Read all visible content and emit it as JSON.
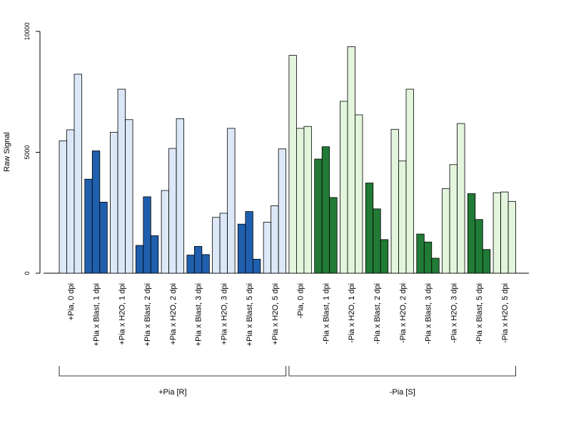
{
  "chart_data": {
    "type": "bar",
    "title": "",
    "xlabel": "",
    "ylabel": "Raw Signal",
    "ylim": [
      0,
      10000
    ],
    "yticks": [
      0,
      5000,
      10000
    ],
    "yticks_text": [
      "0",
      "5000",
      "10000"
    ],
    "grid": false,
    "legend": "none",
    "replicates_per_category": 3,
    "categories": [
      "+Pia, 0 dpi",
      "+Pia x Blast, 1 dpi",
      "+Pia x H2O, 1 dpi",
      "+Pia x Blast, 2 dpi",
      "+Pia x H2O, 2 dpi",
      "+Pia x Blast, 3 dpi",
      "+Pia x H2O, 3 dpi",
      "+Pia x Blast, 5 dpi",
      "+Pia x H2O, 5 dpi",
      "-Pia, 0 dpi",
      "-Pia x Blast, 1 dpi",
      "-Pia x H2O, 1 dpi",
      "-Pia x Blast, 2 dpi",
      "-Pia x H2O, 2 dpi",
      "-Pia x Blast, 3 dpi",
      "-Pia x H2O, 3 dpi",
      "-Pia x Blast, 5 dpi",
      "-Pia x H2O, 5 dpi"
    ],
    "values": [
      [
        5470,
        5930,
        8230
      ],
      [
        3890,
        5060,
        2940
      ],
      [
        5830,
        7610,
        6350
      ],
      [
        1150,
        3160,
        1550
      ],
      [
        3420,
        5160,
        6390
      ],
      [
        750,
        1110,
        770
      ],
      [
        2310,
        2480,
        5990
      ],
      [
        2030,
        2550,
        580
      ],
      [
        2110,
        2790,
        5140
      ],
      [
        9010,
        5990,
        6070
      ],
      [
        4720,
        5230,
        3130
      ],
      [
        7110,
        9370,
        6550
      ],
      [
        3730,
        2660,
        1390
      ],
      [
        5950,
        4640,
        7610
      ],
      [
        1620,
        1290,
        620
      ],
      [
        3500,
        4490,
        6190
      ],
      [
        3290,
        2220,
        980
      ],
      [
        3330,
        3360,
        2970
      ]
    ],
    "bar_colors": [
      "#dce8f7",
      "#1f5fad",
      "#dce8f7",
      "#1f5fad",
      "#dce8f7",
      "#1f5fad",
      "#dce8f7",
      "#1f5fad",
      "#dce8f7",
      "#e3f5dc",
      "#217a35",
      "#e3f5dc",
      "#217a35",
      "#e3f5dc",
      "#217a35",
      "#e3f5dc",
      "#217a35",
      "#e3f5dc"
    ],
    "groups": [
      {
        "label": "+Pia [R]",
        "first_category": 0,
        "last_category": 8
      },
      {
        "label": "-Pia [S]",
        "first_category": 9,
        "last_category": 17
      }
    ]
  }
}
